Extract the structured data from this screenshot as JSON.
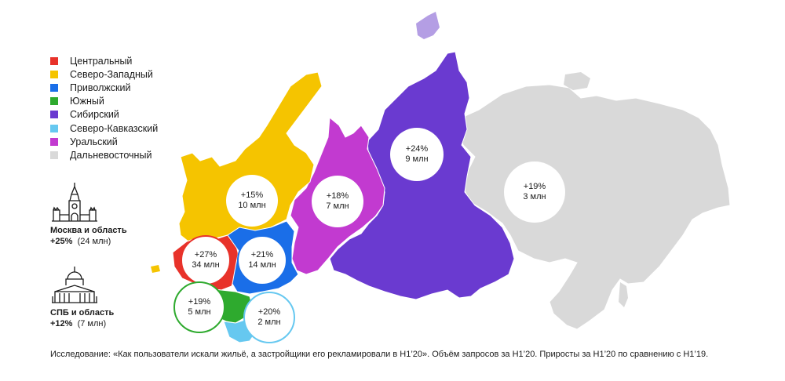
{
  "legend": [
    {
      "label": "Центральный",
      "color": "#e8322a"
    },
    {
      "label": "Северо-Западный",
      "color": "#f5c400"
    },
    {
      "label": "Приволжский",
      "color": "#1a6ee8"
    },
    {
      "label": "Южный",
      "color": "#2eaa2e"
    },
    {
      "label": "Сибирский",
      "color": "#6a3ad0"
    },
    {
      "label": "Северо-Кавказский",
      "color": "#66c8f0"
    },
    {
      "label": "Уральский",
      "color": "#c23ad0"
    },
    {
      "label": "Дальневосточный",
      "color": "#d9d9d9"
    }
  ],
  "cities": {
    "moscow": {
      "name": "Москва и область",
      "growth": "+25%",
      "volume": "(24 млн)",
      "icon": "kremlin-tower-icon"
    },
    "spb": {
      "name": "СПБ и область",
      "growth": "+12%",
      "volume": "(7 млн)",
      "icon": "cathedral-icon"
    }
  },
  "bubbles": {
    "northwest": {
      "growth": "+15%",
      "volume": "10 млн"
    },
    "ural": {
      "growth": "+18%",
      "volume": "7 млн"
    },
    "siberia": {
      "growth": "+24%",
      "volume": "9 млн"
    },
    "fareast": {
      "growth": "+19%",
      "volume": "3 млн"
    },
    "central": {
      "growth": "+27%",
      "volume": "34 млн"
    },
    "volga": {
      "growth": "+21%",
      "volume": "14 млн"
    },
    "south": {
      "growth": "+19%",
      "volume": "5 млн"
    },
    "northcaucasus": {
      "growth": "+20%",
      "volume": "2 млн"
    }
  },
  "footer": "Исследование: «Как пользователи искали жильё, а застройщики его рекламировали в H1’20». Объём запросов за H1’20. Приросты за H1’20 по сравнению с H1’19."
}
